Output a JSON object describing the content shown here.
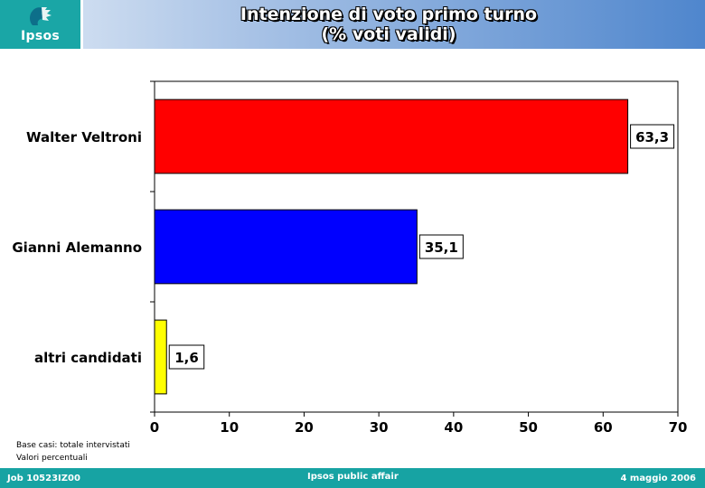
{
  "header": {
    "logo_text": "Ipsos",
    "title_line1": "Intenzione di voto primo turno",
    "title_line2": "(% voti validi)"
  },
  "chart_data": {
    "type": "bar",
    "orientation": "horizontal",
    "categories": [
      "Walter Veltroni",
      "Gianni Alemanno",
      "altri candidati"
    ],
    "values": [
      63.3,
      35.1,
      1.6
    ],
    "value_labels": [
      "63,3",
      "35,1",
      "1,6"
    ],
    "colors": [
      "#ff0000",
      "#0000ff",
      "#ffff00"
    ],
    "xlim": [
      0,
      70
    ],
    "xticks": [
      "0",
      "10",
      "20",
      "30",
      "40",
      "50",
      "60",
      "70"
    ],
    "xlabel": "",
    "ylabel": "",
    "grid": false
  },
  "notes": {
    "base": "Base casi: totale intervistati",
    "values": "Valori percentuali"
  },
  "footer": {
    "job": "Job 10523IZ00",
    "center": "Ipsos public affair",
    "date": "4 maggio 2006"
  }
}
